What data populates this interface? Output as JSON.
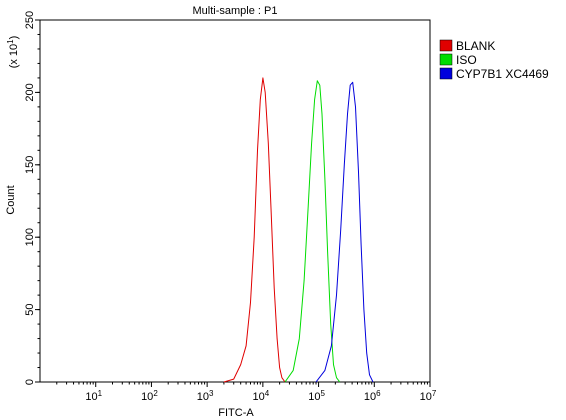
{
  "chart_data": {
    "type": "line",
    "title": "Multi-sample : P1",
    "xlabel": "FITC-A",
    "ylabel": "Count",
    "y_multiplier": "(x 10",
    "y_multiplier_exp": "1",
    "x_scale": "log",
    "xlim": [
      1,
      10000000
    ],
    "ylim": [
      0,
      250
    ],
    "x_ticks": [
      {
        "value": 10,
        "base": "10",
        "exp": "1"
      },
      {
        "value": 100,
        "base": "10",
        "exp": "2"
      },
      {
        "value": 1000,
        "base": "10",
        "exp": "3"
      },
      {
        "value": 10000,
        "base": "10",
        "exp": "4"
      },
      {
        "value": 100000,
        "base": "10",
        "exp": "5"
      },
      {
        "value": 1000000,
        "base": "10",
        "exp": "6"
      },
      {
        "value": 10000000,
        "base": "10",
        "exp": "7"
      }
    ],
    "y_ticks": [
      {
        "value": 0,
        "label": "0"
      },
      {
        "value": 50,
        "label": "50"
      },
      {
        "value": 100,
        "label": "100"
      },
      {
        "value": 150,
        "label": "150"
      },
      {
        "value": 200,
        "label": "200"
      },
      {
        "value": 250,
        "label": "250"
      }
    ],
    "grid": false,
    "legend_position": "top-right",
    "series": [
      {
        "name": "BLANK",
        "color": "#e00000",
        "x": [
          2000,
          3000,
          4000,
          5000,
          6000,
          7000,
          8000,
          9000,
          10000,
          11000,
          12500,
          14000,
          16000,
          18000,
          20000,
          22000,
          25000
        ],
        "y": [
          0,
          2,
          12,
          25,
          55,
          100,
          160,
          195,
          210,
          200,
          165,
          120,
          65,
          30,
          10,
          3,
          0
        ]
      },
      {
        "name": "ISO",
        "color": "#00dd00",
        "x": [
          25000,
          35000,
          45000,
          55000,
          65000,
          75000,
          85000,
          95000,
          105000,
          115000,
          130000,
          145000,
          165000,
          185000,
          210000,
          240000
        ],
        "y": [
          0,
          8,
          30,
          70,
          120,
          165,
          195,
          208,
          205,
          185,
          140,
          90,
          40,
          12,
          3,
          0
        ]
      },
      {
        "name": "CYP7B1 XC4469",
        "color": "#0000dd",
        "x": [
          90000,
          130000,
          170000,
          210000,
          250000,
          290000,
          330000,
          370000,
          410000,
          460000,
          520000,
          580000,
          650000,
          730000,
          820000,
          950000
        ],
        "y": [
          0,
          8,
          25,
          60,
          105,
          150,
          185,
          205,
          207,
          190,
          145,
          95,
          50,
          20,
          5,
          0
        ]
      }
    ]
  }
}
